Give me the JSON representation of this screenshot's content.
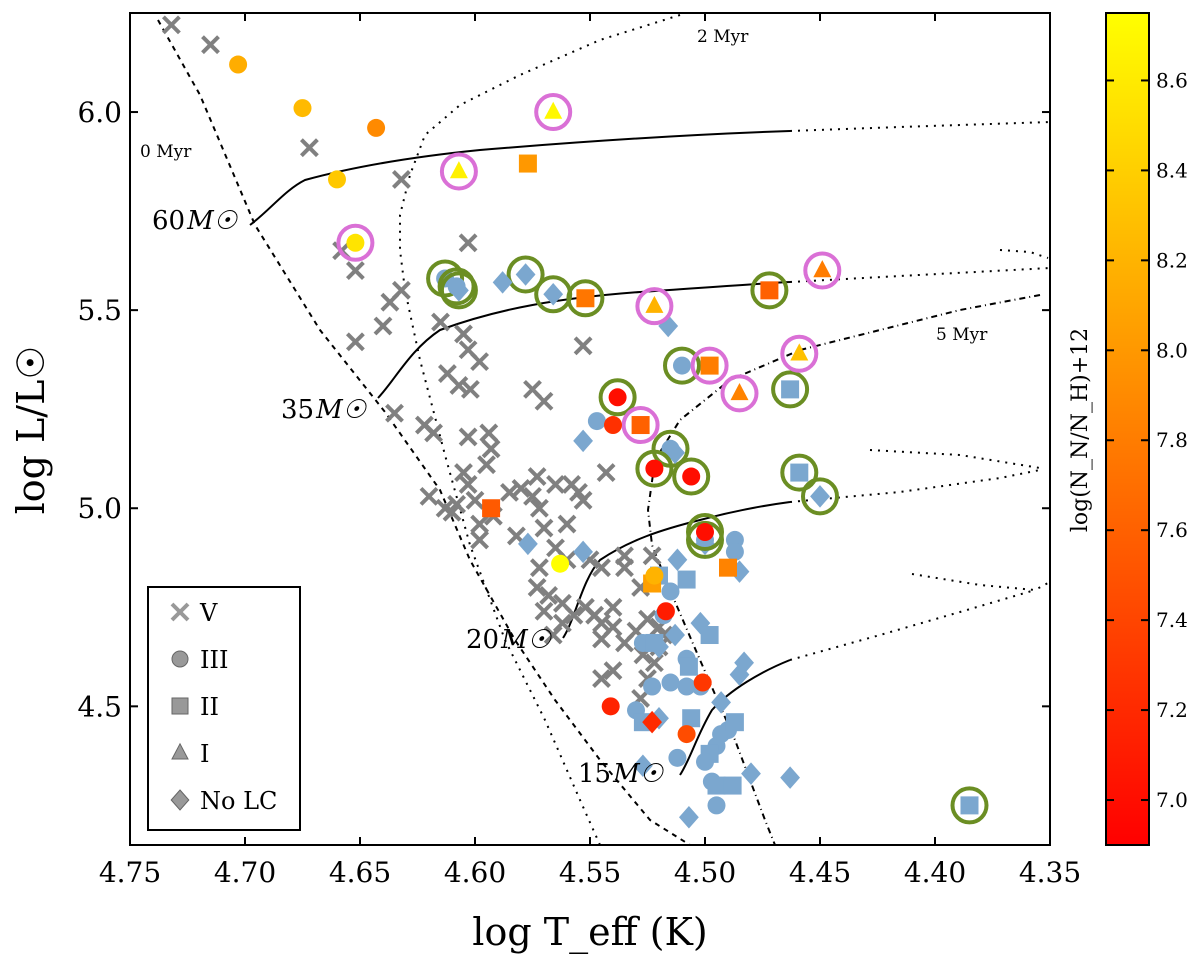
{
  "chart_data": {
    "type": "scatter",
    "title": "",
    "xlabel": "log T_eff (K)",
    "ylabel": "log L/L☉",
    "xlim": [
      4.75,
      4.35
    ],
    "ylim": [
      4.15,
      6.25
    ],
    "x_ticks": [
      "4.75",
      "4.70",
      "4.65",
      "4.60",
      "4.55",
      "4.50",
      "4.45",
      "4.40",
      "4.35"
    ],
    "y_ticks": [
      "4.5",
      "5.0",
      "5.5",
      "6.0"
    ],
    "colorbar": {
      "label": "log(N_N/N_H)+12",
      "range": [
        6.9,
        8.75
      ],
      "ticks": [
        "7.0",
        "7.2",
        "7.4",
        "7.6",
        "7.8",
        "8.0",
        "8.2",
        "8.4",
        "8.6"
      ],
      "colormap": [
        "#ff0000",
        "#ff8000",
        "#ffff00"
      ]
    },
    "legend": {
      "position": "bottom-left",
      "entries": [
        {
          "label": "V",
          "marker": "x"
        },
        {
          "label": "III",
          "marker": "circle"
        },
        {
          "label": "II",
          "marker": "square"
        },
        {
          "label": "I",
          "marker": "triangle"
        },
        {
          "label": "No LC",
          "marker": "diamond"
        }
      ]
    },
    "annotations": {
      "isochrones": [
        "0 Myr",
        "2 Myr",
        "5 Myr"
      ],
      "tracks": [
        {
          "mass": "60",
          "unit": "M☉"
        },
        {
          "mass": "35",
          "unit": "M☉"
        },
        {
          "mass": "20",
          "unit": "M☉"
        },
        {
          "mass": "15",
          "unit": "M☉"
        }
      ]
    },
    "colors": {
      "no_nitrogen": "#7ba7cf",
      "class_v": "#808080",
      "ring_green": "#6b8e23",
      "ring_magenta": "#da70d6"
    },
    "v_stars": [
      [
        4.732,
        6.22
      ],
      [
        4.715,
        6.17
      ],
      [
        4.672,
        5.91
      ],
      [
        4.632,
        5.83
      ],
      [
        4.658,
        5.65
      ],
      [
        4.652,
        5.6
      ],
      [
        4.652,
        5.42
      ],
      [
        4.632,
        5.55
      ],
      [
        4.637,
        5.52
      ],
      [
        4.64,
        5.46
      ],
      [
        4.635,
        5.24
      ],
      [
        4.622,
        5.21
      ],
      [
        4.618,
        5.19
      ],
      [
        4.603,
        5.67
      ],
      [
        4.615,
        5.47
      ],
      [
        4.605,
        5.44
      ],
      [
        4.603,
        5.4
      ],
      [
        4.598,
        5.37
      ],
      [
        4.612,
        5.34
      ],
      [
        4.607,
        5.31
      ],
      [
        4.602,
        5.3
      ],
      [
        4.603,
        5.18
      ],
      [
        4.594,
        5.19
      ],
      [
        4.593,
        5.15
      ],
      [
        4.595,
        5.11
      ],
      [
        4.605,
        5.09
      ],
      [
        4.603,
        5.06
      ],
      [
        4.6,
        5.02
      ],
      [
        4.598,
        4.96
      ],
      [
        4.598,
        4.92
      ],
      [
        4.608,
        5.01
      ],
      [
        4.613,
        5.0
      ],
      [
        4.62,
        5.03
      ],
      [
        4.61,
        4.99
      ],
      [
        4.575,
        5.3
      ],
      [
        4.57,
        5.27
      ],
      [
        4.553,
        5.41
      ],
      [
        4.573,
        5.08
      ],
      [
        4.58,
        5.05
      ],
      [
        4.585,
        5.04
      ],
      [
        4.575,
        5.03
      ],
      [
        4.572,
        5.0
      ],
      [
        4.565,
        5.06
      ],
      [
        4.558,
        5.06
      ],
      [
        4.555,
        5.04
      ],
      [
        4.56,
        4.96
      ],
      [
        4.57,
        4.95
      ],
      [
        4.582,
        4.93
      ],
      [
        4.592,
        4.98
      ],
      [
        4.565,
        4.9
      ],
      [
        4.56,
        4.87
      ],
      [
        4.553,
        5.02
      ],
      [
        4.543,
        5.09
      ],
      [
        4.572,
        4.85
      ],
      [
        4.573,
        4.8
      ],
      [
        4.568,
        4.78
      ],
      [
        4.562,
        4.76
      ],
      [
        4.552,
        4.75
      ],
      [
        4.548,
        4.73
      ],
      [
        4.545,
        4.71
      ],
      [
        4.54,
        4.7
      ],
      [
        4.535,
        4.66
      ],
      [
        4.545,
        4.67
      ],
      [
        4.557,
        4.73
      ],
      [
        4.562,
        4.71
      ],
      [
        4.566,
        4.68
      ],
      [
        4.57,
        4.74
      ],
      [
        4.53,
        4.69
      ],
      [
        4.525,
        4.72
      ],
      [
        4.528,
        4.8
      ],
      [
        4.535,
        4.85
      ],
      [
        4.535,
        4.88
      ],
      [
        4.54,
        4.75
      ],
      [
        4.545,
        4.57
      ],
      [
        4.54,
        4.59
      ],
      [
        4.527,
        4.63
      ],
      [
        4.52,
        4.65
      ],
      [
        4.518,
        4.68
      ],
      [
        4.522,
        4.61
      ],
      [
        4.525,
        4.57
      ],
      [
        4.528,
        4.52
      ],
      [
        4.523,
        4.88
      ],
      [
        4.52,
        4.7
      ],
      [
        4.55,
        4.87
      ],
      [
        4.545,
        4.85
      ]
    ],
    "no_n_stars": [
      {
        "marker": "circle",
        "x": 4.613,
        "y": 5.58,
        "ring": "green"
      },
      {
        "marker": "circle",
        "x": 4.608,
        "y": 5.56,
        "ring": "green"
      },
      {
        "marker": "diamond",
        "x": 4.607,
        "y": 5.55,
        "ring": "green"
      },
      {
        "marker": "diamond",
        "x": 4.578,
        "y": 5.59,
        "ring": "green"
      },
      {
        "marker": "diamond",
        "x": 4.566,
        "y": 5.54,
        "ring": "green"
      },
      {
        "marker": "diamond",
        "x": 4.588,
        "y": 5.57
      },
      {
        "marker": "diamond",
        "x": 4.516,
        "y": 5.46
      },
      {
        "marker": "circle",
        "x": 4.51,
        "y": 5.36,
        "ring": "green"
      },
      {
        "marker": "square",
        "x": 4.463,
        "y": 5.3,
        "ring": "green"
      },
      {
        "marker": "circle",
        "x": 4.547,
        "y": 5.22
      },
      {
        "marker": "diamond",
        "x": 4.553,
        "y": 5.17
      },
      {
        "marker": "circle",
        "x": 4.515,
        "y": 5.15,
        "ring": "green"
      },
      {
        "marker": "diamond",
        "x": 4.513,
        "y": 5.14
      },
      {
        "marker": "square",
        "x": 4.459,
        "y": 5.09,
        "ring": "green"
      },
      {
        "marker": "diamond",
        "x": 4.45,
        "y": 5.03,
        "ring": "green"
      },
      {
        "marker": "circle",
        "x": 4.5,
        "y": 4.92,
        "ring": "green"
      },
      {
        "marker": "diamond",
        "x": 4.5,
        "y": 4.91
      },
      {
        "marker": "circle",
        "x": 4.487,
        "y": 4.92
      },
      {
        "marker": "circle",
        "x": 4.487,
        "y": 4.89
      },
      {
        "marker": "diamond",
        "x": 4.485,
        "y": 4.84
      },
      {
        "marker": "diamond",
        "x": 4.577,
        "y": 4.91
      },
      {
        "marker": "diamond",
        "x": 4.553,
        "y": 4.89
      },
      {
        "marker": "diamond",
        "x": 4.512,
        "y": 4.87
      },
      {
        "marker": "square",
        "x": 4.508,
        "y": 4.82
      },
      {
        "marker": "circle",
        "x": 4.515,
        "y": 4.79
      },
      {
        "marker": "square",
        "x": 4.52,
        "y": 4.83
      },
      {
        "marker": "circle",
        "x": 4.518,
        "y": 4.73
      },
      {
        "marker": "diamond",
        "x": 4.502,
        "y": 4.71
      },
      {
        "marker": "square",
        "x": 4.498,
        "y": 4.68
      },
      {
        "marker": "circle",
        "x": 4.527,
        "y": 4.66
      },
      {
        "marker": "square",
        "x": 4.522,
        "y": 4.66
      },
      {
        "marker": "diamond",
        "x": 4.52,
        "y": 4.65
      },
      {
        "marker": "diamond",
        "x": 4.513,
        "y": 4.68
      },
      {
        "marker": "circle",
        "x": 4.508,
        "y": 4.62
      },
      {
        "marker": "square",
        "x": 4.507,
        "y": 4.6
      },
      {
        "marker": "diamond",
        "x": 4.483,
        "y": 4.61
      },
      {
        "marker": "diamond",
        "x": 4.485,
        "y": 4.58
      },
      {
        "marker": "circle",
        "x": 4.523,
        "y": 4.55
      },
      {
        "marker": "circle",
        "x": 4.515,
        "y": 4.56
      },
      {
        "marker": "circle",
        "x": 4.508,
        "y": 4.55
      },
      {
        "marker": "circle",
        "x": 4.502,
        "y": 4.55
      },
      {
        "marker": "circle",
        "x": 4.53,
        "y": 4.49
      },
      {
        "marker": "square",
        "x": 4.527,
        "y": 4.46
      },
      {
        "marker": "diamond",
        "x": 4.52,
        "y": 4.47
      },
      {
        "marker": "square",
        "x": 4.506,
        "y": 4.47
      },
      {
        "marker": "diamond",
        "x": 4.493,
        "y": 4.51
      },
      {
        "marker": "circle",
        "x": 4.49,
        "y": 4.44
      },
      {
        "marker": "circle",
        "x": 4.493,
        "y": 4.43
      },
      {
        "marker": "square",
        "x": 4.487,
        "y": 4.46
      },
      {
        "marker": "circle",
        "x": 4.495,
        "y": 4.4
      },
      {
        "marker": "square",
        "x": 4.498,
        "y": 4.38
      },
      {
        "marker": "circle",
        "x": 4.5,
        "y": 4.36
      },
      {
        "marker": "circle",
        "x": 4.512,
        "y": 4.37
      },
      {
        "marker": "diamond",
        "x": 4.527,
        "y": 4.35
      },
      {
        "marker": "circle",
        "x": 4.497,
        "y": 4.31
      },
      {
        "marker": "square",
        "x": 4.495,
        "y": 4.3
      },
      {
        "marker": "square",
        "x": 4.488,
        "y": 4.3
      },
      {
        "marker": "diamond",
        "x": 4.48,
        "y": 4.33
      },
      {
        "marker": "diamond",
        "x": 4.463,
        "y": 4.32
      },
      {
        "marker": "circle",
        "x": 4.495,
        "y": 4.25
      },
      {
        "marker": "diamond",
        "x": 4.507,
        "y": 4.22
      },
      {
        "marker": "square",
        "x": 4.385,
        "y": 4.25,
        "ring": "green"
      }
    ],
    "n_stars": [
      {
        "marker": "circle",
        "x": 4.703,
        "y": 6.12,
        "n": 8.15
      },
      {
        "marker": "circle",
        "x": 4.675,
        "y": 6.01,
        "n": 8.25
      },
      {
        "marker": "circle",
        "x": 4.643,
        "y": 5.96,
        "n": 7.9
      },
      {
        "marker": "circle",
        "x": 4.66,
        "y": 5.83,
        "n": 8.35
      },
      {
        "marker": "triangle",
        "x": 4.566,
        "y": 6.0,
        "n": 8.7,
        "ring": "magenta"
      },
      {
        "marker": "triangle",
        "x": 4.607,
        "y": 5.85,
        "n": 8.65,
        "ring": "magenta"
      },
      {
        "marker": "square",
        "x": 4.577,
        "y": 5.87,
        "n": 8.0
      },
      {
        "marker": "circle",
        "x": 4.652,
        "y": 5.67,
        "n": 8.55,
        "ring": "magenta"
      },
      {
        "marker": "square",
        "x": 4.552,
        "y": 5.53,
        "n": 7.75,
        "ring": "green"
      },
      {
        "marker": "triangle",
        "x": 4.522,
        "y": 5.51,
        "n": 8.2,
        "ring": "magenta"
      },
      {
        "marker": "square",
        "x": 4.472,
        "y": 5.55,
        "n": 7.6,
        "ring": "green"
      },
      {
        "marker": "triangle",
        "x": 4.449,
        "y": 5.6,
        "n": 7.8,
        "ring": "magenta"
      },
      {
        "marker": "square",
        "x": 4.498,
        "y": 5.36,
        "n": 7.8,
        "ring": "magenta"
      },
      {
        "marker": "triangle",
        "x": 4.459,
        "y": 5.39,
        "n": 8.3,
        "ring": "magenta"
      },
      {
        "marker": "triangle",
        "x": 4.485,
        "y": 5.29,
        "n": 7.85,
        "ring": "magenta"
      },
      {
        "marker": "circle",
        "x": 4.538,
        "y": 5.28,
        "n": 7.0,
        "ring": "green"
      },
      {
        "marker": "square",
        "x": 4.528,
        "y": 5.21,
        "n": 7.6,
        "ring": "magenta"
      },
      {
        "marker": "circle",
        "x": 4.54,
        "y": 5.21,
        "n": 7.25
      },
      {
        "marker": "circle",
        "x": 4.522,
        "y": 5.1,
        "n": 7.0,
        "ring": "green"
      },
      {
        "marker": "circle",
        "x": 4.506,
        "y": 5.08,
        "n": 7.0,
        "ring": "green"
      },
      {
        "marker": "square",
        "x": 4.593,
        "y": 5.0,
        "n": 7.55
      },
      {
        "marker": "circle",
        "x": 4.5,
        "y": 4.94,
        "n": 7.0,
        "ring": "green"
      },
      {
        "marker": "circle",
        "x": 4.563,
        "y": 4.86,
        "n": 8.75
      },
      {
        "marker": "square",
        "x": 4.523,
        "y": 4.81,
        "n": 8.05
      },
      {
        "marker": "circle",
        "x": 4.522,
        "y": 4.83,
        "n": 8.2
      },
      {
        "marker": "square",
        "x": 4.49,
        "y": 4.85,
        "n": 7.85
      },
      {
        "marker": "circle",
        "x": 4.517,
        "y": 4.74,
        "n": 7.1
      },
      {
        "marker": "circle",
        "x": 4.501,
        "y": 4.56,
        "n": 7.3
      },
      {
        "marker": "circle",
        "x": 4.541,
        "y": 4.5,
        "n": 7.15
      },
      {
        "marker": "diamond",
        "x": 4.523,
        "y": 4.46,
        "n": 7.2
      },
      {
        "marker": "circle",
        "x": 4.508,
        "y": 4.43,
        "n": 7.45
      }
    ]
  }
}
